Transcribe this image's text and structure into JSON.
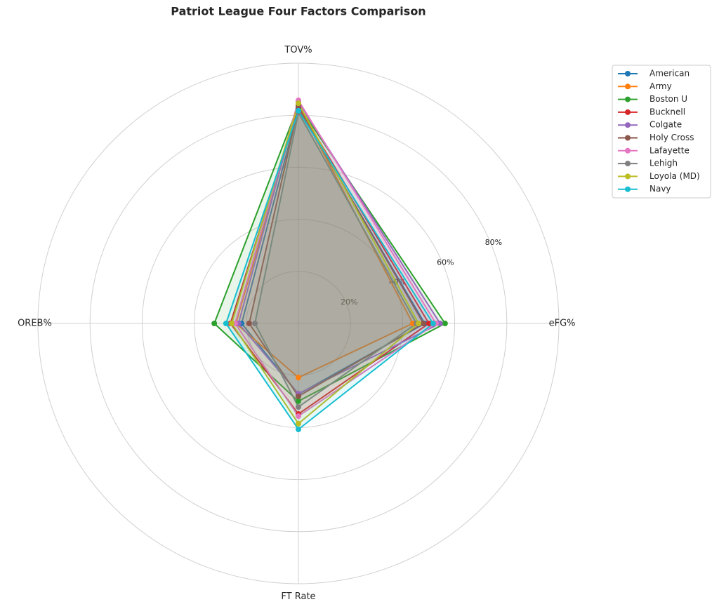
{
  "chart_data": {
    "type": "radar",
    "title": "Patriot League Four Factors Comparison",
    "categories": [
      "eFG%",
      "TOV%",
      "OREB%",
      "FT Rate"
    ],
    "ylim": [
      0,
      100
    ],
    "yticks": [
      {
        "value": 20,
        "label": "20%"
      },
      {
        "value": 40,
        "label": "40%"
      },
      {
        "value": 60,
        "label": "60%"
      },
      {
        "value": 80,
        "label": "80%"
      }
    ],
    "grid": true,
    "legend": "upper right",
    "series": [
      {
        "name": "American",
        "color": "#1f77b4",
        "values": [
          48.5,
          82.5,
          21.8,
          27.2
        ]
      },
      {
        "name": "Army",
        "color": "#ff7f0e",
        "values": [
          43.9,
          83.8,
          24.0,
          20.8
        ]
      },
      {
        "name": "Boston U",
        "color": "#2ca02c",
        "values": [
          56.3,
          83.8,
          32.3,
          29.9
        ]
      },
      {
        "name": "Bucknell",
        "color": "#d62728",
        "values": [
          50.1,
          83.3,
          26.1,
          34.8
        ]
      },
      {
        "name": "Colgate",
        "color": "#9467bd",
        "values": [
          54.4,
          85.2,
          23.0,
          27.0
        ]
      },
      {
        "name": "Holy Cross",
        "color": "#8c564b",
        "values": [
          48.0,
          83.0,
          18.9,
          28.0
        ]
      },
      {
        "name": "Lafayette",
        "color": "#e377c2",
        "values": [
          52.8,
          85.7,
          24.3,
          35.6
        ]
      },
      {
        "name": "Lehigh",
        "color": "#7f7f7f",
        "values": [
          45.3,
          81.0,
          16.7,
          32.1
        ]
      },
      {
        "name": "Loyola (MD)",
        "color": "#bcbd22",
        "values": [
          46.1,
          84.6,
          25.6,
          38.5
        ]
      },
      {
        "name": "Navy",
        "color": "#17becf",
        "values": [
          51.7,
          81.7,
          27.8,
          40.7
        ]
      }
    ]
  }
}
